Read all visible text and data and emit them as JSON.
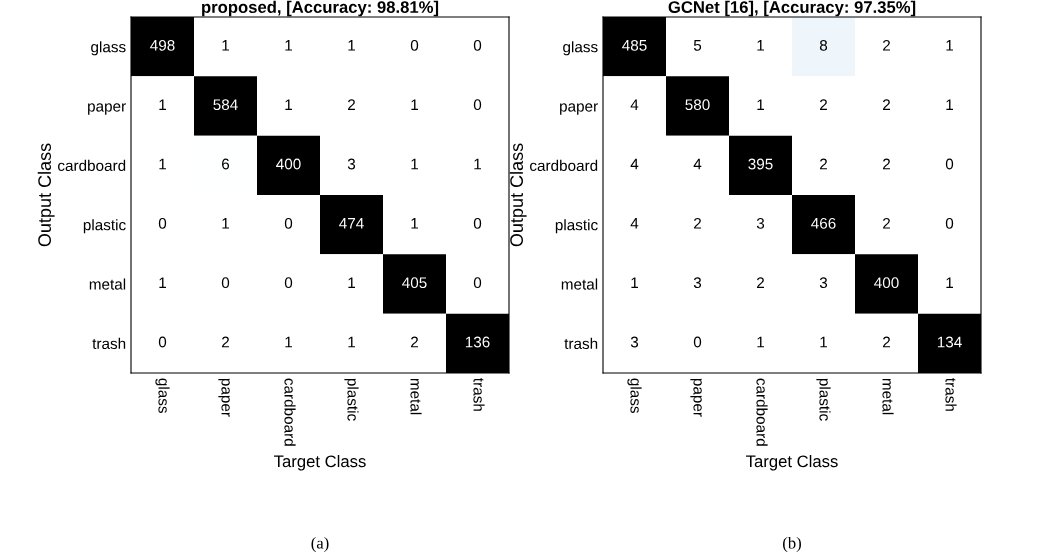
{
  "chart_data": [
    {
      "type": "heatmap",
      "data_labels": true,
      "title": "proposed, [Accuracy: 98.81%]",
      "xlabel": "Target Class",
      "ylabel": "Output Class",
      "categories": [
        "glass",
        "paper",
        "cardboard",
        "plastic",
        "metal",
        "trash"
      ],
      "y_categories": [
        "glass",
        "paper",
        "cardboard",
        "plastic",
        "metal",
        "trash"
      ],
      "cells": [
        [
          498,
          1,
          1,
          1,
          0,
          0
        ],
        [
          1,
          584,
          1,
          2,
          1,
          0
        ],
        [
          1,
          6,
          400,
          3,
          1,
          1
        ],
        [
          0,
          1,
          0,
          474,
          1,
          0
        ],
        [
          1,
          0,
          0,
          1,
          405,
          0
        ],
        [
          0,
          2,
          1,
          1,
          2,
          136
        ]
      ],
      "annotations": [
        "(a)"
      ]
    },
    {
      "type": "heatmap",
      "data_labels": true,
      "title": "GCNet [16], [Accuracy: 97.35%]",
      "xlabel": "Target Class",
      "ylabel": "Output Class",
      "categories": [
        "glass",
        "paper",
        "cardboard",
        "plastic",
        "metal",
        "trash"
      ],
      "y_categories": [
        "glass",
        "paper",
        "cardboard",
        "plastic",
        "metal",
        "trash"
      ],
      "cells": [
        [
          485,
          5,
          1,
          8,
          2,
          1
        ],
        [
          4,
          580,
          1,
          2,
          2,
          1
        ],
        [
          4,
          4,
          395,
          2,
          2,
          0
        ],
        [
          4,
          2,
          3,
          466,
          2,
          0
        ],
        [
          1,
          3,
          2,
          3,
          400,
          1
        ],
        [
          3,
          0,
          1,
          1,
          2,
          134
        ]
      ],
      "annotations": [
        "(b)"
      ]
    }
  ]
}
